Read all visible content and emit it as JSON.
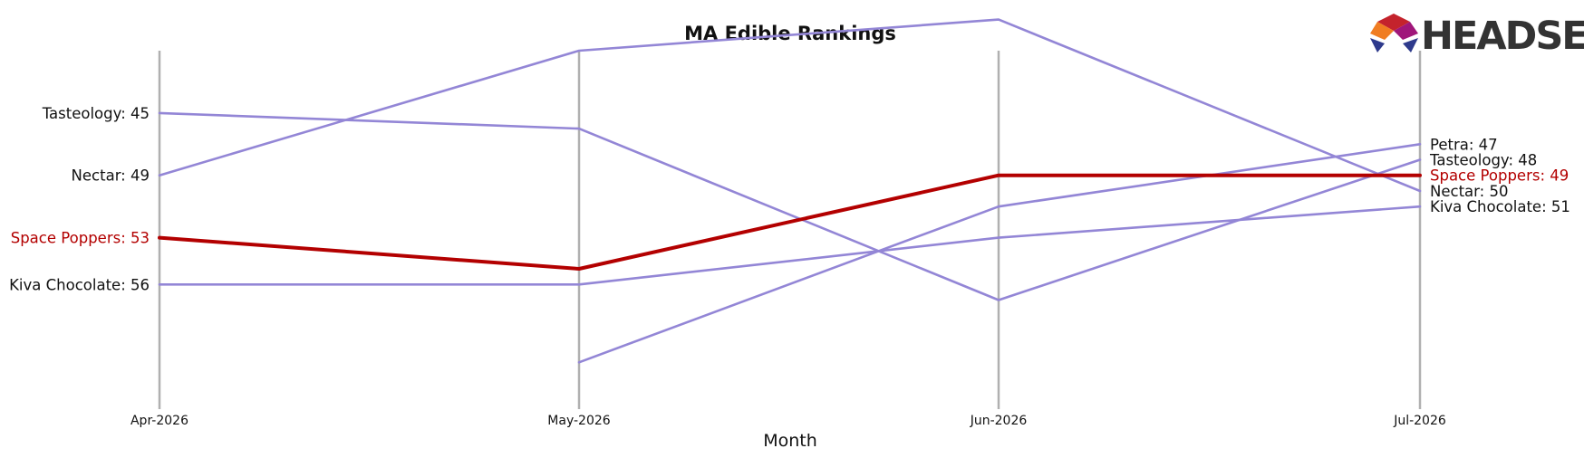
{
  "logo": {
    "text": "HEADSET",
    "icon": "headset-logo-icon"
  },
  "colors": {
    "highlight": "#b30000",
    "other": "#9386d6",
    "axis": "#b0b0b0",
    "label": "#111111"
  },
  "chart_data": {
    "type": "line",
    "title": "MA Edible Rankings",
    "xlabel": "Month",
    "ylabel": "",
    "x": [
      "Apr-2026",
      "May-2026",
      "Jun-2026",
      "Jul-2026"
    ],
    "y_inverted": true,
    "ylim": [
      41,
      64
    ],
    "grid": false,
    "highlight": "Space Poppers",
    "series": [
      {
        "name": "Tasteology",
        "values": [
          45,
          46,
          57,
          48
        ],
        "start_label": "Tasteology: 45",
        "end_label": "Tasteology: 48"
      },
      {
        "name": "Nectar",
        "values": [
          49,
          41,
          39,
          50
        ],
        "start_label": "Nectar: 49",
        "end_label": "Nectar: 50"
      },
      {
        "name": "Space Poppers",
        "values": [
          53,
          55,
          49,
          49
        ],
        "start_label": "Space Poppers: 53",
        "end_label": "Space Poppers: 49"
      },
      {
        "name": "Kiva Chocolate",
        "values": [
          56,
          56,
          53,
          51
        ],
        "start_label": "Kiva Chocolate: 56",
        "end_label": "Kiva Chocolate: 51"
      },
      {
        "name": "Petra",
        "values": [
          null,
          61,
          51,
          47
        ],
        "start_label": "",
        "end_label": "Petra: 47"
      }
    ]
  }
}
